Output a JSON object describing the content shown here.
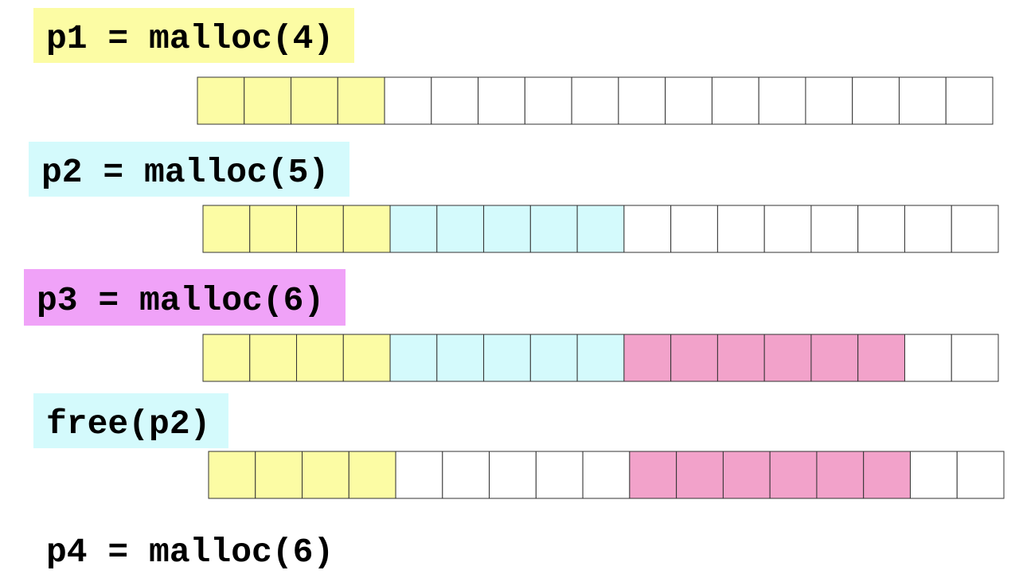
{
  "steps": [
    "p1 = malloc(4)",
    "p2 = malloc(5)",
    "p3 = malloc(6)",
    "free(p2)",
    "p4 = malloc(6)"
  ]
}
